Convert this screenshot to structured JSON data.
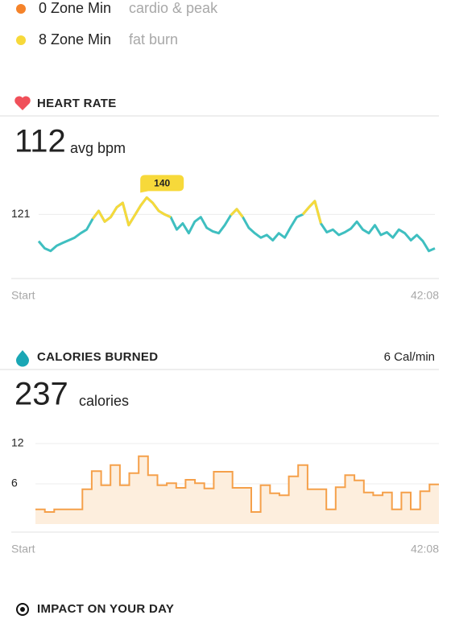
{
  "zones": [
    {
      "value": 0,
      "unit": "Zone Min",
      "label": "cardio & peak",
      "color": "#f5832a"
    },
    {
      "value": 8,
      "unit": "Zone Min",
      "label": "fat burn",
      "color": "#f7d93a"
    }
  ],
  "impact": {
    "title": "IMPACT ON YOUR DAY"
  },
  "chart_data": [
    {
      "type": "line",
      "title": "HEART RATE",
      "summary": {
        "value": 112,
        "unit": "avg bpm"
      },
      "x_labels": [
        "Start",
        "42:08"
      ],
      "ylim": [
        50,
        181
      ],
      "yticks": [
        121
      ],
      "grid": true,
      "max": 140,
      "series": [
        {
          "color": "#3fbfc0",
          "values": [
            91,
            83,
            80,
            86,
            89,
            92,
            95,
            100,
            104,
            116,
            125,
            113,
            118,
            129,
            134,
            109,
            120,
            131,
            140,
            134,
            125,
            121,
            118,
            104,
            111,
            100,
            113,
            118,
            106,
            102,
            100,
            109,
            120,
            127,
            118,
            106,
            100,
            95,
            98,
            92,
            100,
            95,
            107,
            118,
            121,
            129,
            136,
            111,
            101,
            104,
            98,
            101,
            105,
            113,
            104,
            100,
            109,
            98,
            101,
            95,
            104,
            100,
            92,
            98,
            91,
            80,
            83
          ]
        },
        {
          "color": "#f7d93a",
          "values": [
            null,
            null,
            null,
            null,
            null,
            null,
            null,
            null,
            null,
            116,
            125,
            113,
            118,
            129,
            134,
            109,
            120,
            131,
            140,
            134,
            125,
            121,
            118,
            null,
            null,
            null,
            null,
            null,
            null,
            null,
            null,
            null,
            120,
            127,
            118,
            null,
            null,
            null,
            null,
            null,
            null,
            null,
            null,
            null,
            121,
            129,
            136,
            111,
            null,
            null,
            null,
            null,
            null,
            null,
            null,
            null,
            null,
            null,
            null,
            null,
            null,
            null,
            null,
            null,
            null,
            null,
            null
          ]
        }
      ]
    },
    {
      "type": "step-area",
      "title": "CALORIES BURNED",
      "rate": "6 Cal/min",
      "summary": {
        "value": 237,
        "unit": "calories"
      },
      "x_labels": [
        "Start",
        "42:08"
      ],
      "ylim": [
        0,
        12
      ],
      "yticks": [
        6,
        12
      ],
      "grid": true,
      "color": "#f5a04a",
      "fill": "#fdeedd",
      "values": [
        2.2,
        1.8,
        2.2,
        2.2,
        2.2,
        5.2,
        7.9,
        5.8,
        8.8,
        5.8,
        7.6,
        10.1,
        7.3,
        5.8,
        6.1,
        5.4,
        6.6,
        6.1,
        5.3,
        7.8,
        7.8,
        5.4,
        5.4,
        1.8,
        5.8,
        4.6,
        4.3,
        7.1,
        8.8,
        5.2,
        5.2,
        2.2,
        5.5,
        7.3,
        6.5,
        4.7,
        4.3,
        4.7,
        2.2,
        4.7,
        2.2,
        4.9,
        5.9
      ]
    }
  ]
}
